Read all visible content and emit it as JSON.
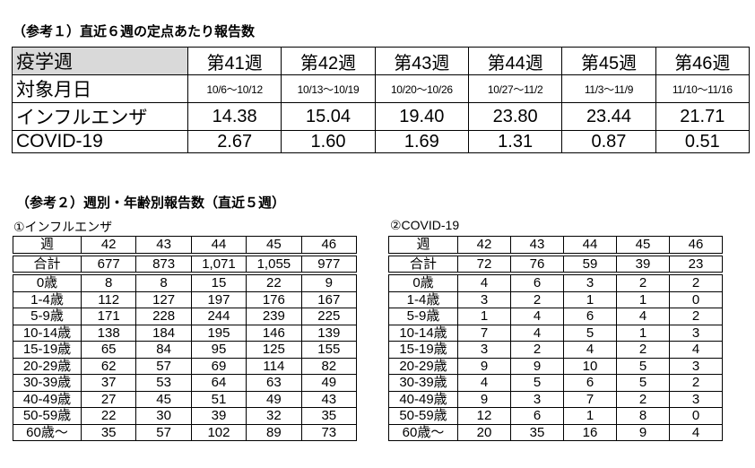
{
  "ref1": {
    "title": "（参考１）直近６週の定点あたり報告数",
    "header_label": "疫学週",
    "dates_label": "対象月日",
    "weeks": [
      "第41週",
      "第42週",
      "第43週",
      "第44週",
      "第45週",
      "第46週"
    ],
    "dates": [
      "10/6～10/12",
      "10/13～10/19",
      "10/20～10/26",
      "10/27～11/2",
      "11/3～11/9",
      "11/10～11/16"
    ],
    "rows": [
      {
        "label": "インフルエンザ",
        "values": [
          "14.38",
          "15.04",
          "19.40",
          "23.80",
          "23.44",
          "21.71"
        ]
      },
      {
        "label": "COVID-19",
        "values": [
          "2.67",
          "1.60",
          "1.69",
          "1.31",
          "0.87",
          "0.51"
        ]
      }
    ]
  },
  "ref2": {
    "title": "（参考２）週別・年齢別報告数（直近５週）",
    "week_label": "週",
    "weeks": [
      "42",
      "43",
      "44",
      "45",
      "46"
    ],
    "total_label": "合計",
    "age_labels": [
      "0歳",
      "1-4歳",
      "5-9歳",
      "10-14歳",
      "15-19歳",
      "20-29歳",
      "30-39歳",
      "40-49歳",
      "50-59歳",
      "60歳～"
    ],
    "flu": {
      "title": "①インフルエンザ",
      "totals": [
        "677",
        "873",
        "1,071",
        "1,055",
        "977"
      ],
      "rows": [
        [
          "8",
          "8",
          "15",
          "22",
          "9"
        ],
        [
          "112",
          "127",
          "197",
          "176",
          "167"
        ],
        [
          "171",
          "228",
          "244",
          "239",
          "225"
        ],
        [
          "138",
          "184",
          "195",
          "146",
          "139"
        ],
        [
          "65",
          "84",
          "95",
          "125",
          "155"
        ],
        [
          "62",
          "57",
          "69",
          "114",
          "82"
        ],
        [
          "37",
          "53",
          "64",
          "63",
          "49"
        ],
        [
          "27",
          "45",
          "51",
          "49",
          "43"
        ],
        [
          "22",
          "30",
          "39",
          "32",
          "35"
        ],
        [
          "35",
          "57",
          "102",
          "89",
          "73"
        ]
      ]
    },
    "covid": {
      "title": "②COVID-19",
      "totals": [
        "72",
        "76",
        "59",
        "39",
        "23"
      ],
      "rows": [
        [
          "4",
          "6",
          "3",
          "2",
          "2"
        ],
        [
          "3",
          "2",
          "1",
          "1",
          "0"
        ],
        [
          "1",
          "4",
          "6",
          "4",
          "2"
        ],
        [
          "7",
          "4",
          "5",
          "1",
          "3"
        ],
        [
          "3",
          "2",
          "4",
          "2",
          "4"
        ],
        [
          "9",
          "9",
          "10",
          "5",
          "3"
        ],
        [
          "4",
          "5",
          "6",
          "5",
          "2"
        ],
        [
          "9",
          "3",
          "7",
          "2",
          "3"
        ],
        [
          "12",
          "6",
          "1",
          "8",
          "0"
        ],
        [
          "20",
          "35",
          "16",
          "9",
          "4"
        ]
      ]
    }
  }
}
